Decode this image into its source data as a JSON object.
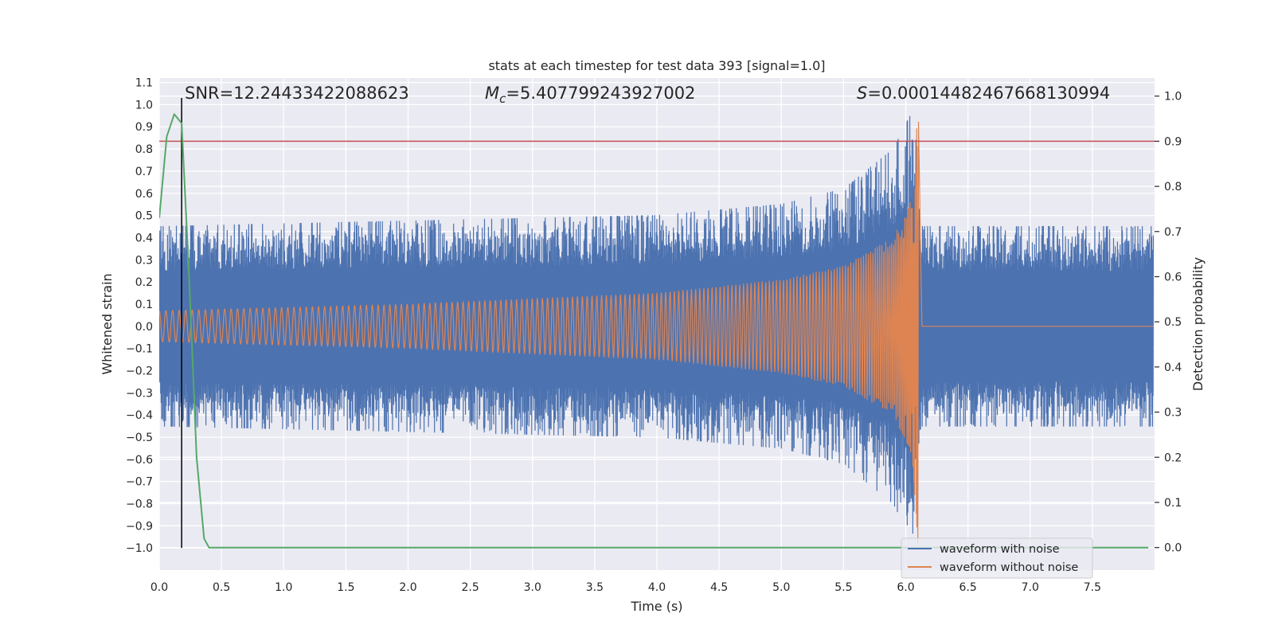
{
  "chart_data": {
    "type": "line",
    "title": "stats at each timestep for test data 393 [signal=1.0]",
    "xlabel": "Time (s)",
    "ylabel": "Whitened strain",
    "y2label": "Detection probability",
    "xlim": [
      0.0,
      8.0
    ],
    "ylim": [
      -1.1,
      1.12
    ],
    "y2lim": [
      -0.05,
      1.04
    ],
    "x_ticks": [
      0.0,
      0.5,
      1.0,
      1.5,
      2.0,
      2.5,
      3.0,
      3.5,
      4.0,
      4.5,
      5.0,
      5.5,
      6.0,
      6.5,
      7.0,
      7.5
    ],
    "x_tick_labels": [
      "0.0",
      "0.5",
      "1.0",
      "1.5",
      "2.0",
      "2.5",
      "3.0",
      "3.5",
      "4.0",
      "4.5",
      "5.0",
      "5.5",
      "6.0",
      "6.5",
      "7.0",
      "7.5"
    ],
    "y_ticks": [
      1.1,
      1.0,
      0.9,
      0.8,
      0.7,
      0.6,
      0.5,
      0.4,
      0.3,
      0.2,
      0.1,
      0.0,
      -0.1,
      -0.2,
      -0.3,
      -0.4,
      -0.5,
      -0.6,
      -0.7,
      -0.8,
      -0.9,
      -1.0
    ],
    "y_tick_labels": [
      "1.1",
      "1.0",
      "0.9",
      "0.8",
      "0.7",
      "0.6",
      "0.5",
      "0.4",
      "0.3",
      "0.2",
      "0.1",
      "0.0",
      "−0.1",
      "−0.2",
      "−0.3",
      "−0.4",
      "−0.5",
      "−0.6",
      "−0.7",
      "−0.8",
      "−0.9",
      "−1.0"
    ],
    "y2_ticks": [
      1.0,
      0.9,
      0.8,
      0.7,
      0.6,
      0.5,
      0.4,
      0.3,
      0.2,
      0.1,
      0.0
    ],
    "y2_tick_labels": [
      "1.0",
      "0.9",
      "0.8",
      "0.7",
      "0.6",
      "0.5",
      "0.4",
      "0.3",
      "0.2",
      "0.1",
      "0.0"
    ],
    "annotations": {
      "snr": "SNR=12.24433422088623",
      "mc_symbol": "M",
      "mc_sub": "c",
      "mc_value": "=5.407799243927002",
      "s_symbol": "S",
      "s_value": "=0.00014482467668130994"
    },
    "threshold": {
      "axis": "y2",
      "value": 0.9,
      "color": "#c44e52"
    },
    "detection_time": 0.18,
    "merger_time": 6.1,
    "series": [
      {
        "name": "waveform with noise",
        "axis": "y",
        "color": "#4c72b0",
        "noise_envelope": [
          {
            "t": 0.0,
            "amp": 0.45
          },
          {
            "t": 4.0,
            "amp": 0.5
          },
          {
            "t": 5.0,
            "amp": 0.55
          },
          {
            "t": 5.5,
            "amp": 0.62
          },
          {
            "t": 5.9,
            "amp": 0.8
          },
          {
            "t": 6.08,
            "amp": 1.0
          },
          {
            "t": 6.12,
            "amp": 0.45
          },
          {
            "t": 8.0,
            "amp": 0.45
          }
        ]
      },
      {
        "name": "waveform without noise",
        "axis": "y",
        "color": "#dd8452",
        "chirp_envelope": [
          {
            "t": 0.0,
            "amp": 0.07
          },
          {
            "t": 2.0,
            "amp": 0.1
          },
          {
            "t": 4.0,
            "amp": 0.15
          },
          {
            "t": 5.0,
            "amp": 0.21
          },
          {
            "t": 5.5,
            "amp": 0.27
          },
          {
            "t": 5.9,
            "amp": 0.4
          },
          {
            "t": 6.05,
            "amp": 0.58
          },
          {
            "t": 6.1,
            "amp": 1.0
          },
          {
            "t": 6.13,
            "amp": 0.0
          },
          {
            "t": 8.0,
            "amp": 0.0
          }
        ]
      },
      {
        "name": "detection probability",
        "axis": "y2",
        "color": "#55a868",
        "x": [
          0.0,
          0.06,
          0.12,
          0.18,
          0.24,
          0.3,
          0.36,
          0.4,
          0.5,
          1.0,
          2.0,
          3.0,
          4.0,
          5.0,
          6.0,
          7.0,
          7.95
        ],
        "values": [
          0.73,
          0.91,
          0.96,
          0.94,
          0.6,
          0.2,
          0.02,
          0.0,
          0.0,
          0.0,
          0.0,
          0.0,
          0.0,
          0.0,
          0.0,
          0.0,
          0.0
        ]
      }
    ],
    "legend": {
      "placement": "lower-right",
      "entries": [
        {
          "label": "waveform with noise",
          "color": "#4c72b0"
        },
        {
          "label": "waveform without noise",
          "color": "#dd8452"
        }
      ]
    }
  }
}
